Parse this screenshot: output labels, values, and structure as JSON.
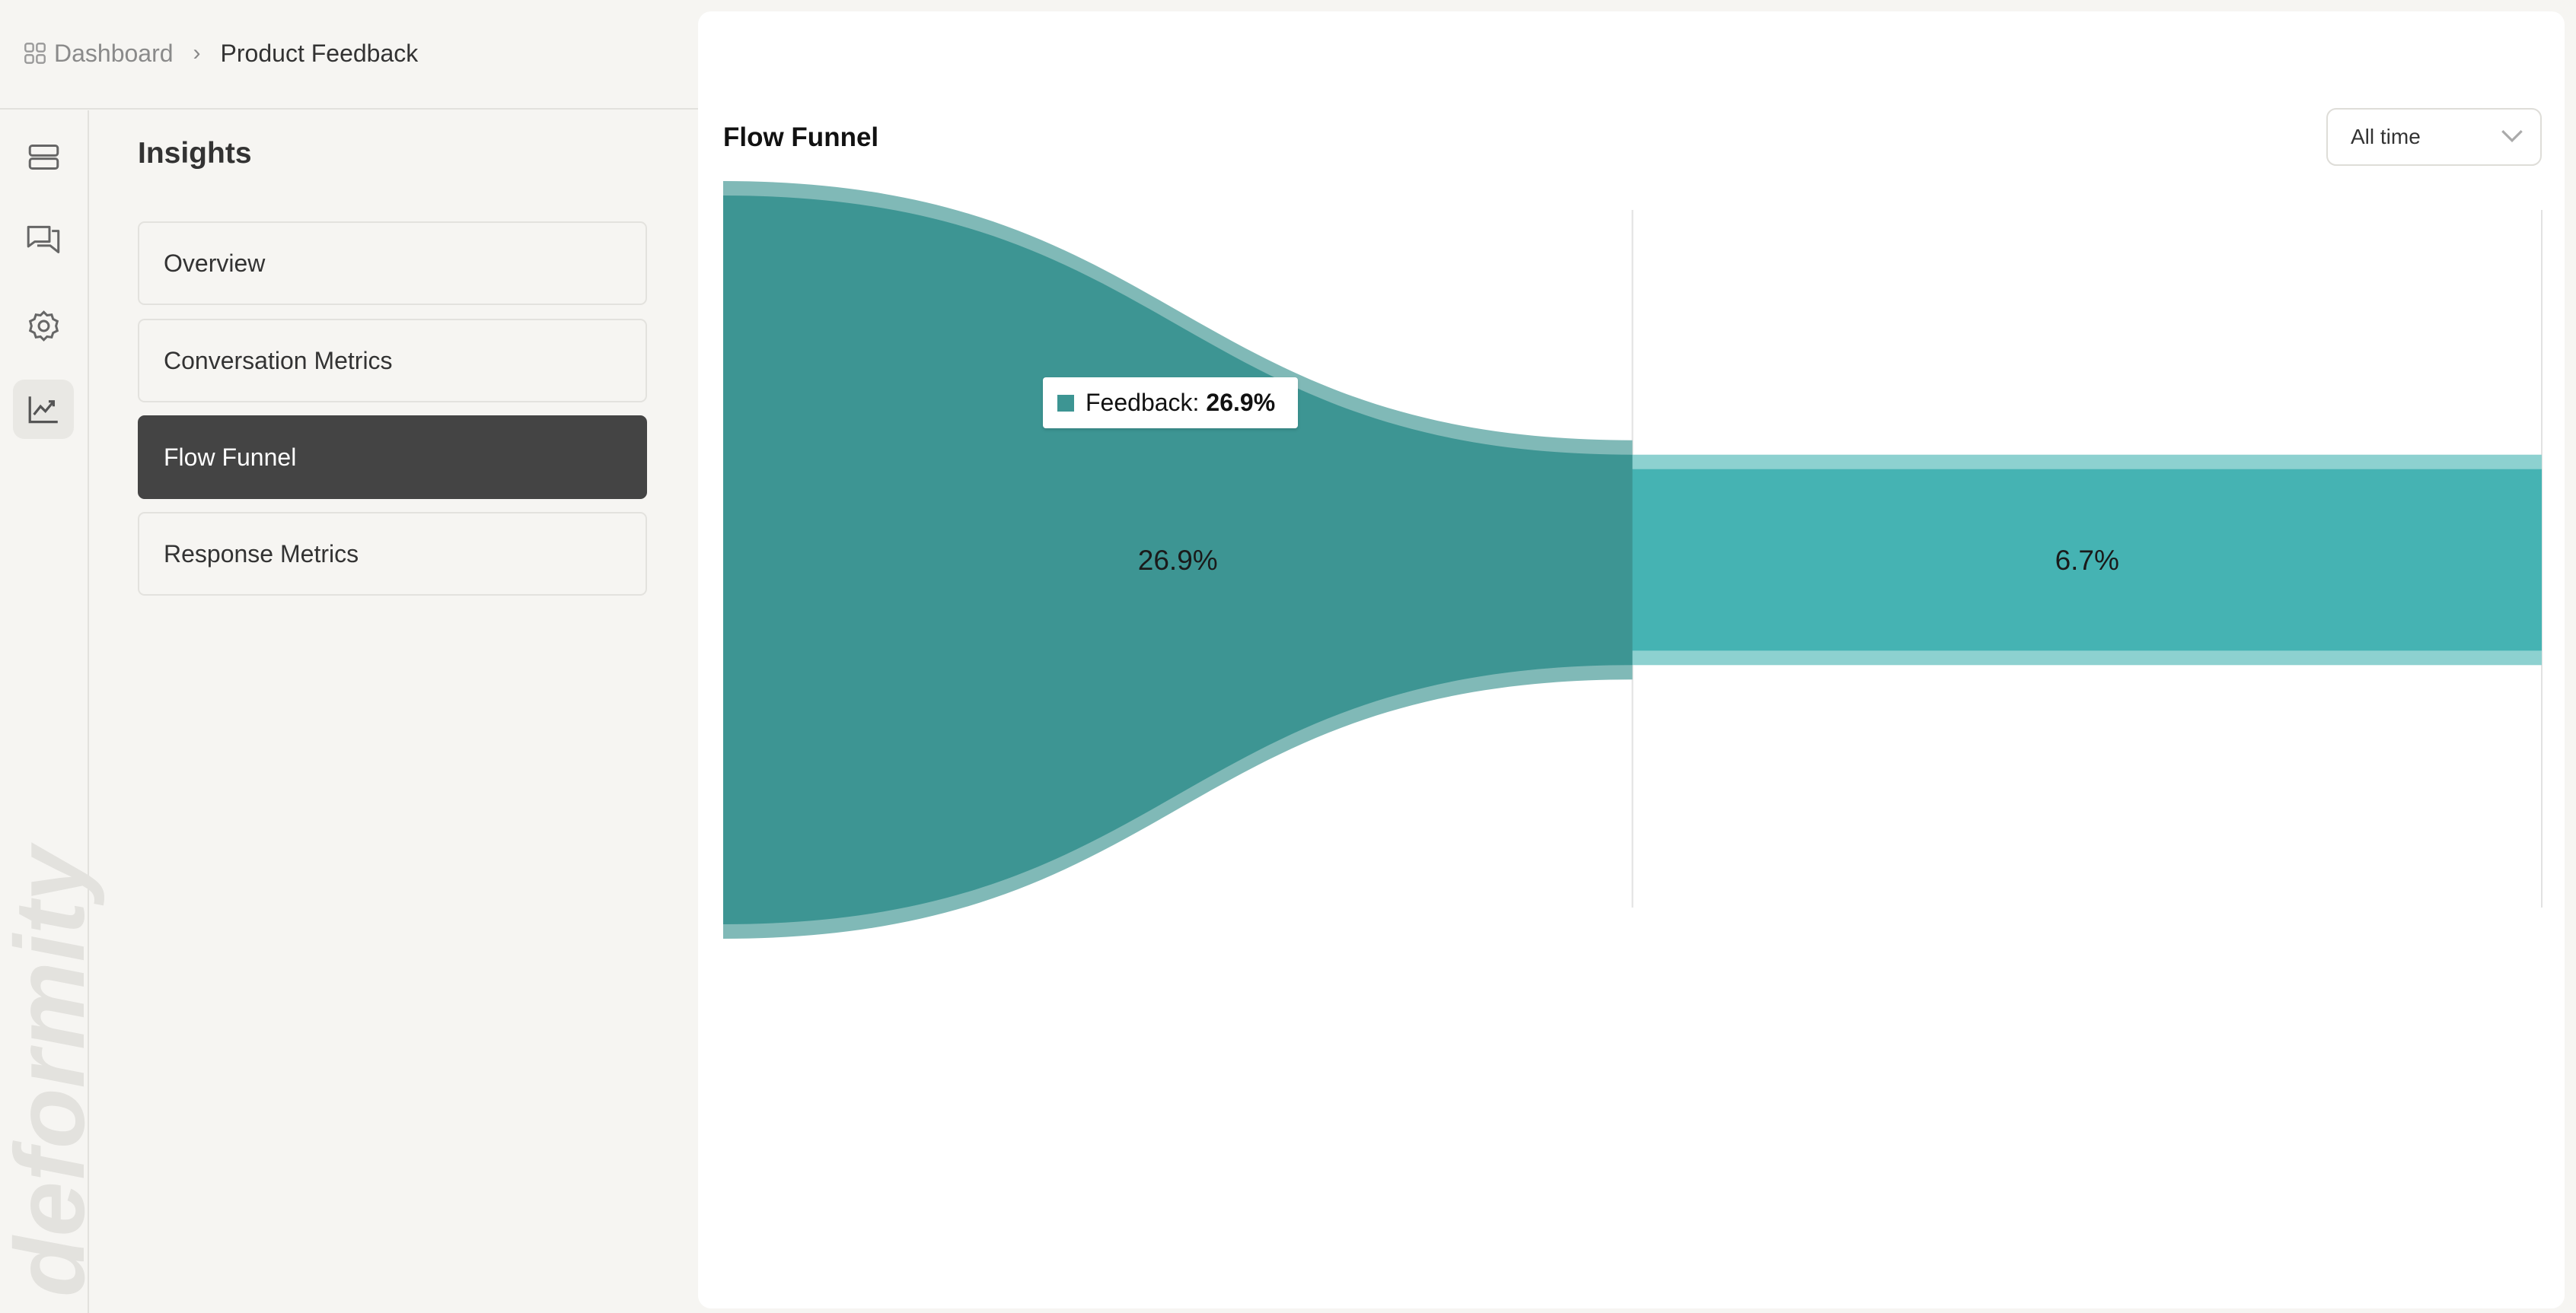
{
  "breadcrumb": {
    "items": [
      "Dashboard",
      "Product Feedback"
    ],
    "separator": "›"
  },
  "rail": {
    "icons": [
      "rows-icon",
      "chat-icon",
      "gear-icon",
      "chart-line-icon"
    ],
    "active": 3
  },
  "watermark": "deformity",
  "sidebar": {
    "title": "Insights",
    "items": [
      {
        "label": "Overview"
      },
      {
        "label": "Conversation Metrics"
      },
      {
        "label": "Flow Funnel",
        "active": true
      },
      {
        "label": "Response Metrics"
      }
    ]
  },
  "main": {
    "title": "Flow Funnel",
    "range_select": {
      "value": "All time"
    }
  },
  "tooltip": {
    "label": "Feedback:",
    "value": "26.9%"
  },
  "colors": {
    "stage1": "#3d9593",
    "stage1_band": "#80b9b7",
    "stage2": "#45b3b3",
    "stage2_band": "#8dd1d0"
  },
  "chart_data": {
    "type": "funnel",
    "stages": [
      {
        "name": "Feedback",
        "value": 26.9,
        "label": "26.9%"
      },
      {
        "value": 6.7,
        "label": "6.7%"
      }
    ],
    "unit": "%"
  }
}
